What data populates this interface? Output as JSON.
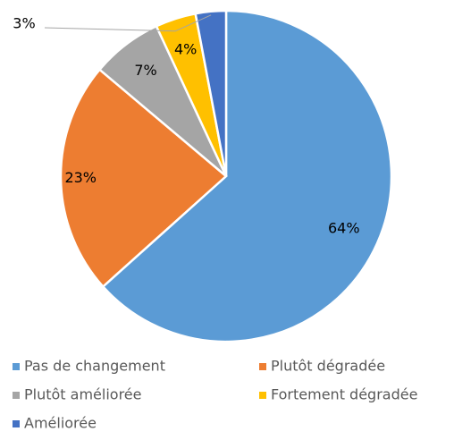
{
  "chart_data": {
    "type": "pie",
    "categories": [
      "Pas de changement",
      "Plutôt dégradée",
      "Plutôt améliorée",
      "Fortement dégradée",
      "Améliorée"
    ],
    "values": [
      64,
      23,
      7,
      4,
      3
    ],
    "value_labels": [
      "64%",
      "23%",
      "7%",
      "4%",
      "3%"
    ],
    "colors": [
      "#5b9bd5",
      "#ed7d31",
      "#a5a5a5",
      "#ffc000",
      "#4472c4"
    ],
    "legend": "bottom"
  }
}
